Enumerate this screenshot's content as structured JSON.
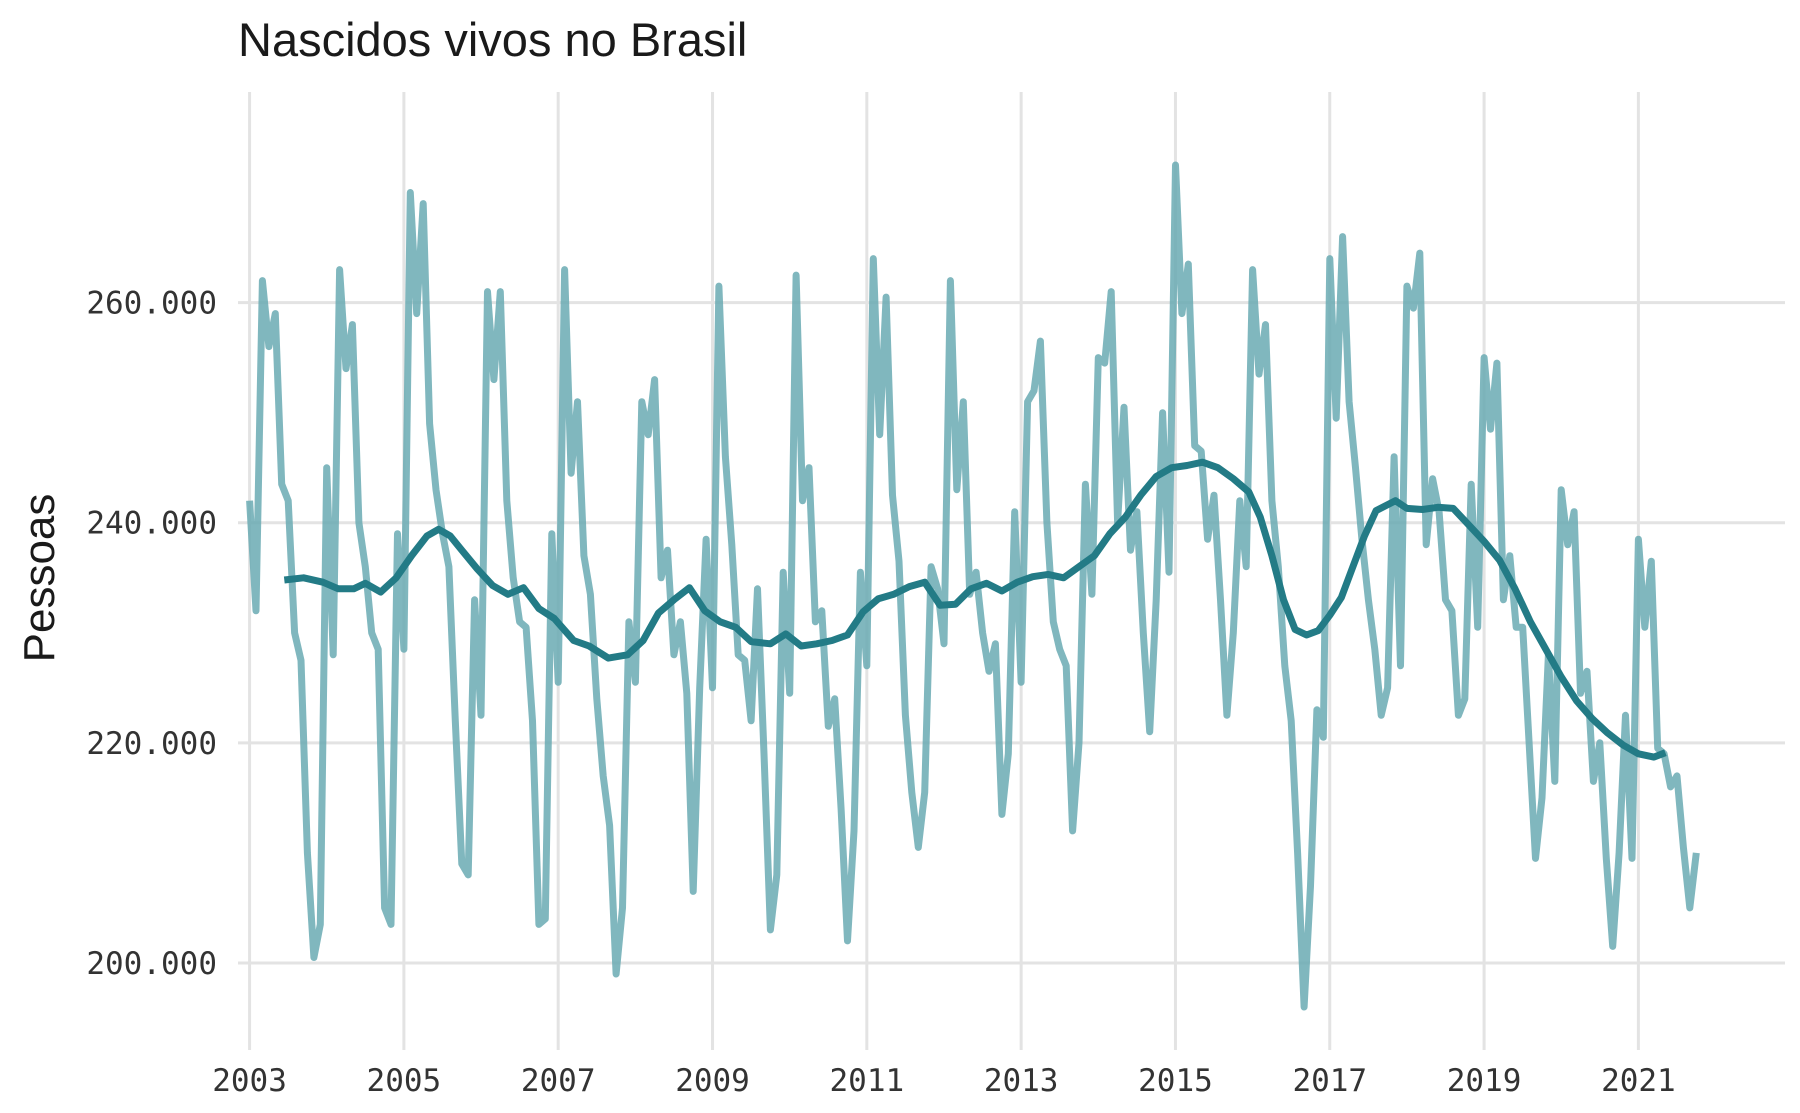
{
  "chart_data": {
    "type": "line",
    "title": "Nascidos vivos no Brasil",
    "xlabel": "",
    "ylabel": "Pessoas",
    "xlim": [
      2002.85,
      2022.9
    ],
    "ylim": [
      193000,
      277500
    ],
    "x_ticks": [
      2003,
      2005,
      2007,
      2009,
      2011,
      2013,
      2015,
      2017,
      2019,
      2021
    ],
    "x_tick_labels": [
      "2003",
      "2005",
      "2007",
      "2009",
      "2011",
      "2013",
      "2015",
      "2017",
      "2019",
      "2021"
    ],
    "y_ticks": [
      200000,
      220000,
      240000,
      260000
    ],
    "y_tick_labels": [
      "200.000",
      "220.000",
      "240.000",
      "260.000"
    ],
    "grid": true,
    "legend": "none",
    "colors": {
      "monthly": "#6aaab3",
      "trend": "#237b86"
    },
    "series": [
      {
        "name": "",
        "role": "monthly",
        "x_start": 2003.0,
        "x_step_months": 1,
        "values": [
          242000,
          232000,
          262000,
          256000,
          259000,
          243500,
          242000,
          230000,
          227500,
          210000,
          200500,
          203500,
          245000,
          228000,
          263000,
          254000,
          258000,
          240000,
          236000,
          230000,
          228500,
          205000,
          203500,
          239000,
          228500,
          270000,
          259000,
          269000,
          249000,
          243000,
          239000,
          236000,
          222000,
          209000,
          208000,
          233000,
          222500,
          261000,
          253000,
          261000,
          242000,
          235000,
          231000,
          230500,
          222000,
          203500,
          204000,
          239000,
          225500,
          263000,
          244500,
          251000,
          237000,
          233500,
          224000,
          217000,
          212500,
          199000,
          205000,
          231000,
          225500,
          251000,
          248000,
          253000,
          235000,
          237500,
          228000,
          231000,
          224500,
          206500,
          225000,
          238500,
          225000,
          261500,
          246000,
          238000,
          228000,
          227500,
          222000,
          234000,
          219000,
          203000,
          208000,
          235500,
          224500,
          262500,
          242000,
          245000,
          231000,
          232000,
          221500,
          224000,
          214000,
          202000,
          212000,
          235500,
          227000,
          264000,
          248000,
          260500,
          242500,
          236500,
          222500,
          215500,
          210500,
          215500,
          236000,
          234000,
          229000,
          262000,
          243000,
          251000,
          233500,
          235500,
          230000,
          226500,
          229000,
          213500,
          219000,
          241000,
          225500,
          251000,
          252000,
          256500,
          240000,
          231000,
          228500,
          227000,
          212000,
          220000,
          243500,
          233500,
          255000,
          254500,
          261000,
          240000,
          250500,
          237500,
          241000,
          230000,
          221000,
          233000,
          250000,
          235500,
          272500,
          259000,
          263500,
          247000,
          246500,
          238500,
          242500,
          233000,
          222500,
          230000,
          242000,
          236000,
          263000,
          253500,
          258000,
          242000,
          236000,
          227000,
          222000,
          210000,
          196000,
          207000,
          223000,
          220500,
          264000,
          249500,
          266000,
          251000,
          245000,
          238500,
          233000,
          228500,
          222500,
          225000,
          246000,
          227000,
          261500,
          259500,
          264500,
          238000,
          244000,
          241000,
          233000,
          232000,
          222500,
          224000,
          243500,
          230500,
          255000,
          248500,
          254500,
          233000,
          237000,
          230500,
          230500,
          220000,
          209500,
          215000,
          228000,
          216500,
          243000,
          238000,
          241000,
          224500,
          226500,
          216500,
          220000,
          209500,
          201500,
          210000,
          222500,
          209500,
          238500,
          230500,
          236500,
          219500,
          219000,
          216000,
          217000,
          210500,
          205000,
          210000
        ]
      },
      {
        "name": "",
        "role": "trend",
        "points": [
          [
            2003.45,
            234800
          ],
          [
            2003.7,
            235000
          ],
          [
            2003.95,
            234600
          ],
          [
            2004.15,
            234000
          ],
          [
            2004.35,
            234000
          ],
          [
            2004.5,
            234500
          ],
          [
            2004.7,
            233700
          ],
          [
            2004.9,
            235000
          ],
          [
            2005.1,
            237000
          ],
          [
            2005.3,
            238800
          ],
          [
            2005.45,
            239400
          ],
          [
            2005.6,
            238800
          ],
          [
            2005.75,
            237500
          ],
          [
            2005.95,
            235800
          ],
          [
            2006.15,
            234300
          ],
          [
            2006.35,
            233500
          ],
          [
            2006.55,
            234100
          ],
          [
            2006.75,
            232200
          ],
          [
            2006.95,
            231300
          ],
          [
            2007.2,
            229300
          ],
          [
            2007.4,
            228800
          ],
          [
            2007.65,
            227700
          ],
          [
            2007.9,
            228000
          ],
          [
            2008.1,
            229300
          ],
          [
            2008.3,
            231800
          ],
          [
            2008.5,
            233000
          ],
          [
            2008.7,
            234100
          ],
          [
            2008.9,
            232000
          ],
          [
            2009.1,
            231000
          ],
          [
            2009.3,
            230500
          ],
          [
            2009.5,
            229200
          ],
          [
            2009.75,
            229000
          ],
          [
            2009.95,
            229900
          ],
          [
            2010.15,
            228800
          ],
          [
            2010.35,
            229000
          ],
          [
            2010.55,
            229300
          ],
          [
            2010.75,
            229800
          ],
          [
            2010.95,
            231900
          ],
          [
            2011.15,
            233100
          ],
          [
            2011.35,
            233500
          ],
          [
            2011.55,
            234200
          ],
          [
            2011.75,
            234600
          ],
          [
            2011.95,
            232500
          ],
          [
            2012.15,
            232600
          ],
          [
            2012.35,
            234000
          ],
          [
            2012.55,
            234500
          ],
          [
            2012.75,
            233800
          ],
          [
            2012.95,
            234600
          ],
          [
            2013.15,
            235100
          ],
          [
            2013.35,
            235300
          ],
          [
            2013.55,
            235000
          ],
          [
            2013.75,
            236000
          ],
          [
            2013.95,
            237000
          ],
          [
            2014.15,
            239000
          ],
          [
            2014.35,
            240500
          ],
          [
            2014.55,
            242500
          ],
          [
            2014.75,
            244200
          ],
          [
            2014.95,
            245000
          ],
          [
            2015.15,
            245200
          ],
          [
            2015.35,
            245500
          ],
          [
            2015.55,
            245000
          ],
          [
            2015.75,
            244000
          ],
          [
            2015.95,
            242800
          ],
          [
            2016.1,
            240500
          ],
          [
            2016.25,
            237000
          ],
          [
            2016.4,
            233000
          ],
          [
            2016.55,
            230300
          ],
          [
            2016.7,
            229800
          ],
          [
            2016.85,
            230200
          ],
          [
            2017.0,
            231600
          ],
          [
            2017.15,
            233200
          ],
          [
            2017.3,
            236000
          ],
          [
            2017.45,
            238800
          ],
          [
            2017.6,
            241100
          ],
          [
            2017.85,
            242000
          ],
          [
            2018.0,
            241300
          ],
          [
            2018.2,
            241200
          ],
          [
            2018.4,
            241400
          ],
          [
            2018.6,
            241300
          ],
          [
            2018.8,
            239800
          ],
          [
            2019.0,
            238300
          ],
          [
            2019.2,
            236600
          ],
          [
            2019.4,
            234000
          ],
          [
            2019.6,
            231000
          ],
          [
            2019.8,
            228500
          ],
          [
            2020.0,
            226000
          ],
          [
            2020.2,
            223800
          ],
          [
            2020.4,
            222200
          ],
          [
            2020.6,
            220900
          ],
          [
            2020.8,
            219800
          ],
          [
            2021.0,
            219000
          ],
          [
            2021.2,
            218700
          ],
          [
            2021.35,
            219100
          ]
        ]
      }
    ]
  }
}
